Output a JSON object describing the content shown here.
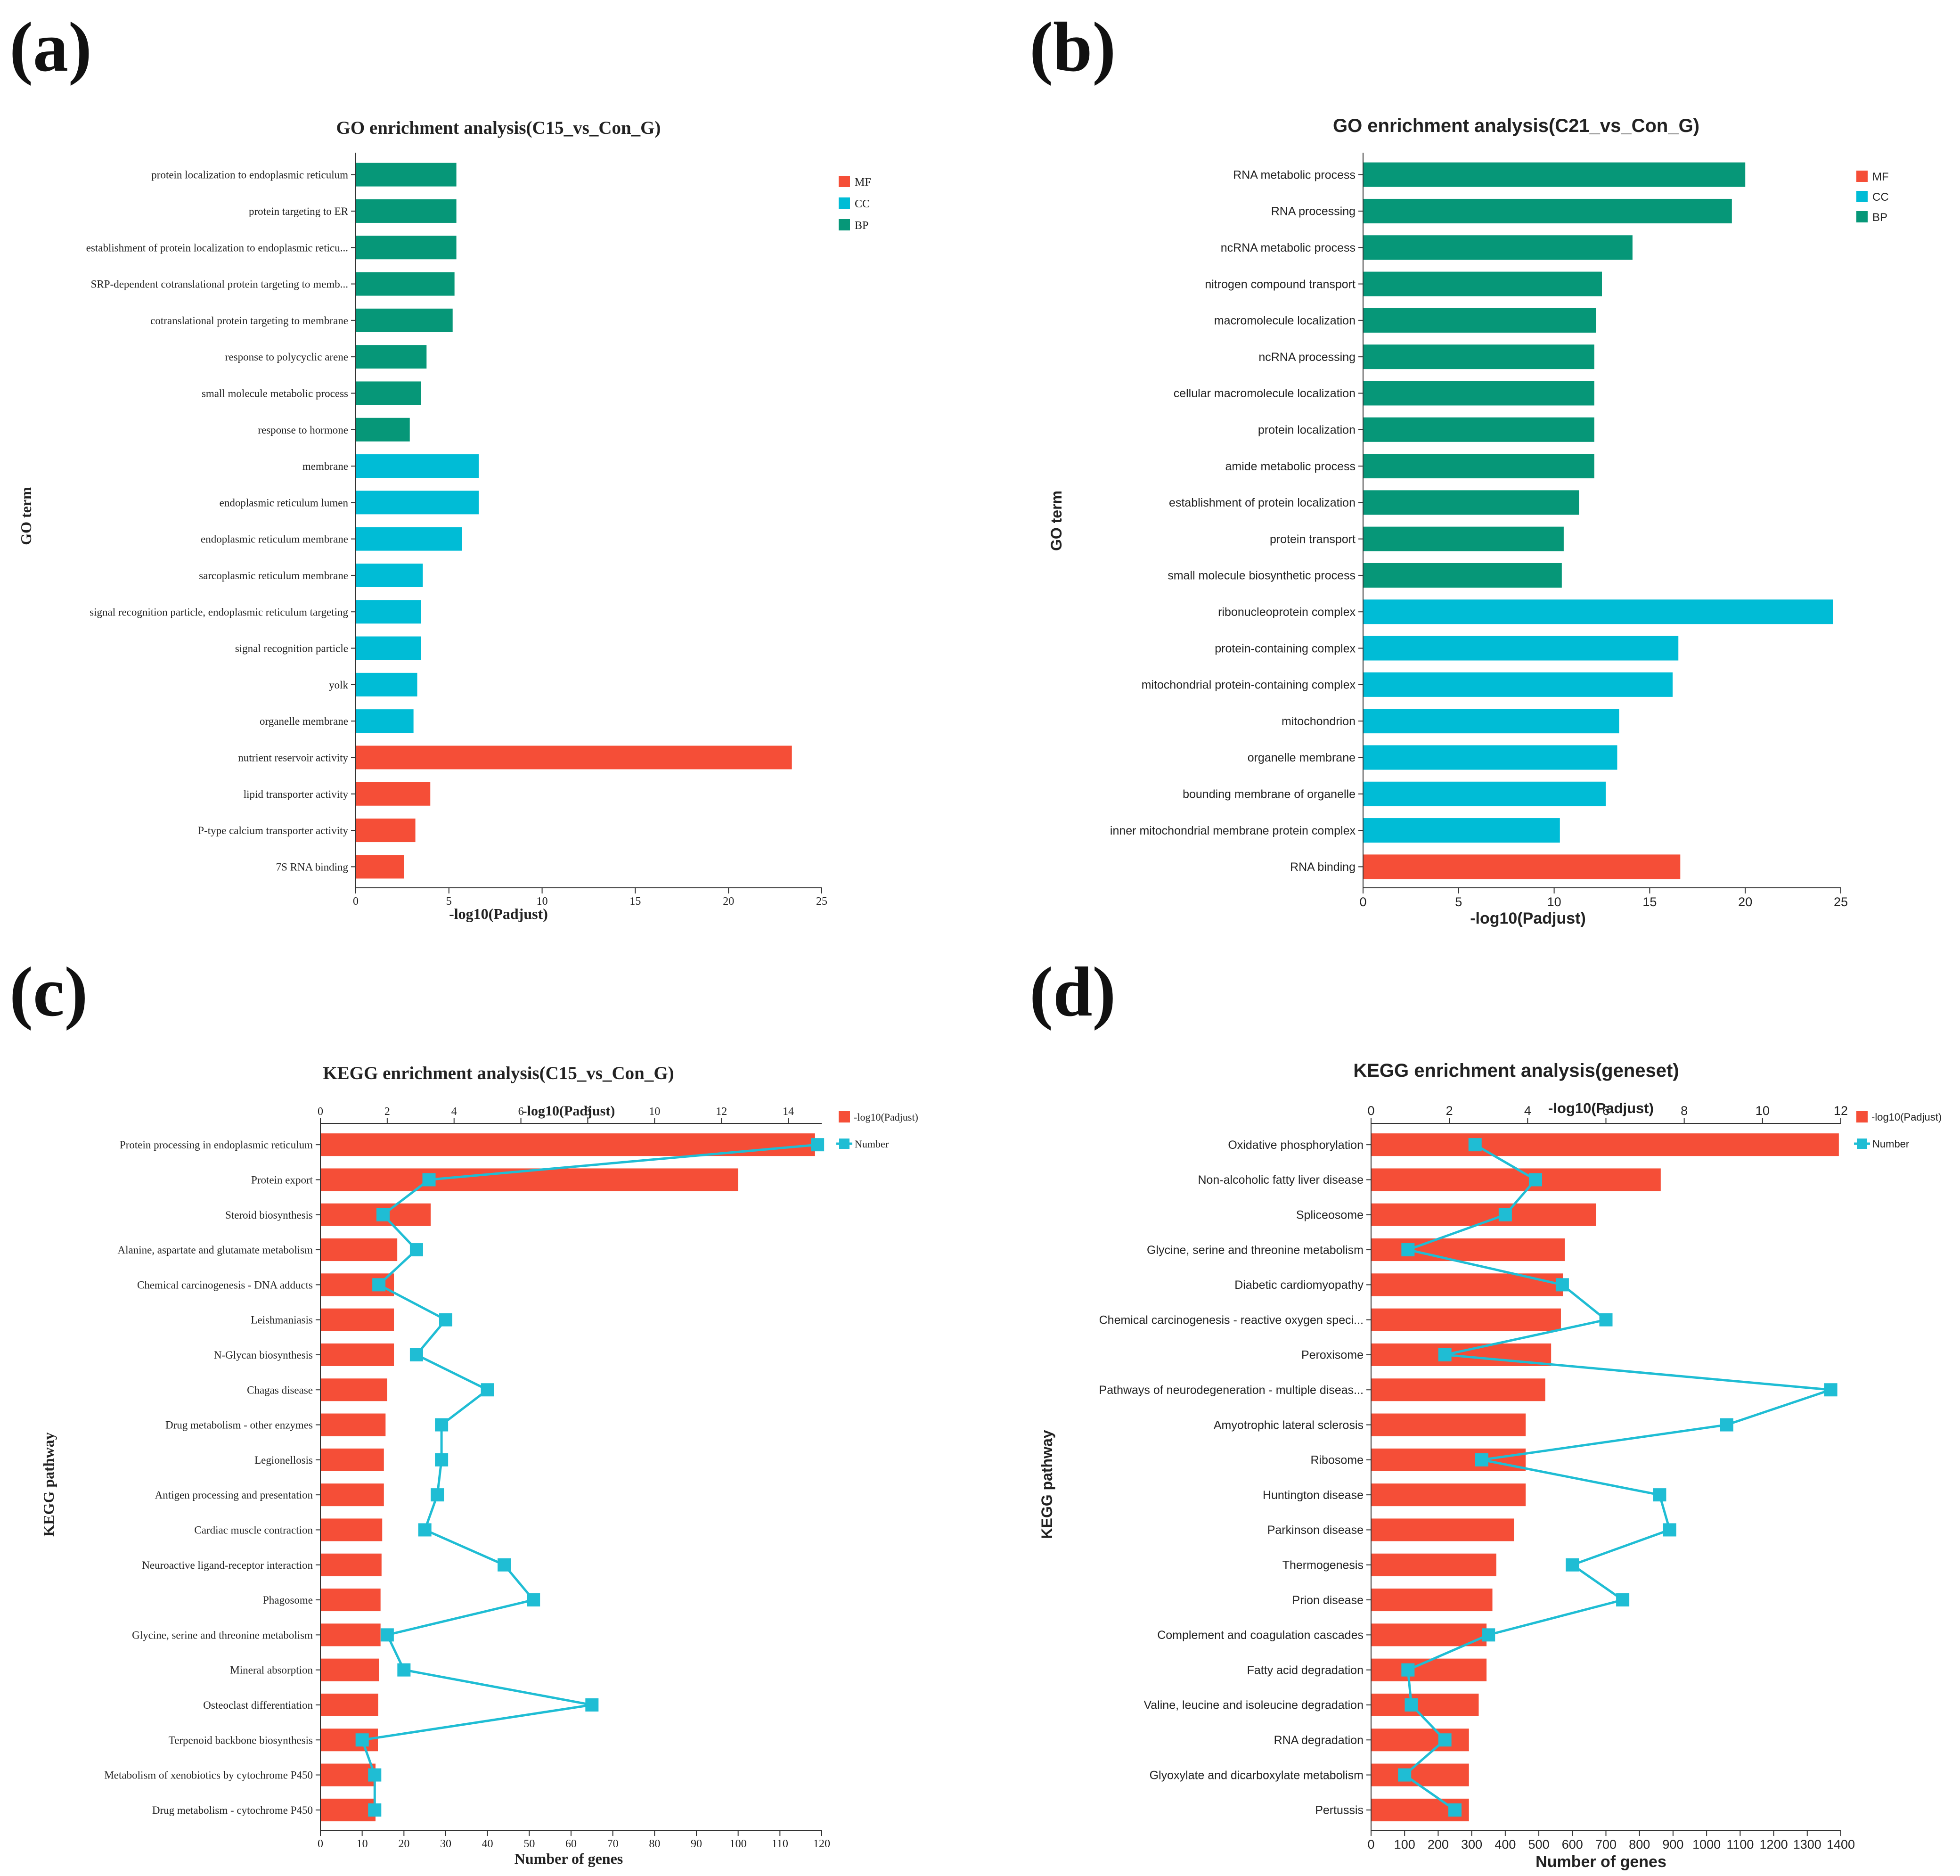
{
  "colors": {
    "MF": "#F54E37",
    "CC": "#00BCD6",
    "BP": "#069778",
    "line": "#1FBDD4",
    "axis": "#333333",
    "text": "#222222"
  },
  "chart_data": [
    {
      "type": "bar",
      "panel_label": "(a)",
      "title": "GO enrichment analysis(C15_vs_Con_G)",
      "xlabel": "-log10(Padjust)",
      "ylabel": "GO term",
      "xlim": [
        0,
        25
      ],
      "xticks": [
        0,
        5,
        10,
        15,
        20,
        25
      ],
      "legend": [
        "MF",
        "CC",
        "BP"
      ],
      "categories": [
        "protein localization to endoplasmic reticulum",
        "protein targeting to ER",
        "establishment of protein localization to endoplasmic reticu...",
        "SRP-dependent cotranslational protein targeting to memb...",
        "cotranslational protein targeting to membrane",
        "response to polycyclic arene",
        "small molecule metabolic process",
        "response to hormone",
        "membrane",
        "endoplasmic reticulum lumen",
        "endoplasmic reticulum membrane",
        "sarcoplasmic reticulum membrane",
        "signal recognition particle, endoplasmic reticulum targeting",
        "signal recognition particle",
        "yolk",
        "organelle membrane",
        "nutrient reservoir activity",
        "lipid transporter activity",
        "P-type calcium transporter activity",
        "7S RNA binding"
      ],
      "values": [
        5.4,
        5.4,
        5.4,
        5.3,
        5.2,
        3.8,
        3.5,
        2.9,
        6.6,
        6.6,
        5.7,
        3.6,
        3.5,
        3.5,
        3.3,
        3.1,
        23.4,
        4.0,
        3.2,
        2.6
      ],
      "groups": [
        "BP",
        "BP",
        "BP",
        "BP",
        "BP",
        "BP",
        "BP",
        "BP",
        "CC",
        "CC",
        "CC",
        "CC",
        "CC",
        "CC",
        "CC",
        "CC",
        "MF",
        "MF",
        "MF",
        "MF"
      ]
    },
    {
      "type": "bar",
      "panel_label": "(b)",
      "title": "GO enrichment analysis(C21_vs_Con_G)",
      "xlabel": "-log10(Padjust)",
      "ylabel": "GO term",
      "xlim": [
        0,
        25
      ],
      "xticks": [
        0,
        5,
        10,
        15,
        20,
        25
      ],
      "legend": [
        "MF",
        "CC",
        "BP"
      ],
      "categories": [
        "RNA metabolic process",
        "RNA processing",
        "ncRNA metabolic process",
        "nitrogen compound transport",
        "macromolecule localization",
        "ncRNA processing",
        "cellular macromolecule localization",
        "protein localization",
        "amide metabolic process",
        "establishment of protein localization",
        "protein transport",
        "small molecule biosynthetic process",
        "ribonucleoprotein complex",
        "protein-containing complex",
        "mitochondrial protein-containing complex",
        "mitochondrion",
        "organelle membrane",
        "bounding membrane of organelle",
        "inner mitochondrial membrane protein complex",
        "RNA binding"
      ],
      "values": [
        20.0,
        19.3,
        14.1,
        12.5,
        12.2,
        12.1,
        12.1,
        12.1,
        12.1,
        11.3,
        10.5,
        10.4,
        24.6,
        16.5,
        16.2,
        13.4,
        13.3,
        12.7,
        10.3,
        16.6
      ],
      "groups": [
        "BP",
        "BP",
        "BP",
        "BP",
        "BP",
        "BP",
        "BP",
        "BP",
        "BP",
        "BP",
        "BP",
        "BP",
        "CC",
        "CC",
        "CC",
        "CC",
        "CC",
        "CC",
        "CC",
        "MF"
      ]
    },
    {
      "type": "bar",
      "panel_label": "(c)",
      "title": "KEGG enrichment analysis(C15_vs_Con_G)",
      "xlabel_top": "-log10(Padjust)",
      "xlabel": "Number of genes",
      "ylabel": "KEGG pathway",
      "xlim_top": [
        0,
        15
      ],
      "xticks_top": [
        0,
        2,
        4,
        6,
        8,
        10,
        12,
        14
      ],
      "xlim": [
        0,
        120
      ],
      "xticks": [
        0,
        10,
        20,
        30,
        40,
        50,
        60,
        70,
        80,
        90,
        100,
        110,
        120
      ],
      "legend": [
        "-log10(Padjust)",
        "Number"
      ],
      "categories": [
        "Protein processing in endoplasmic reticulum",
        "Protein export",
        "Steroid biosynthesis",
        "Alanine, aspartate and glutamate metabolism",
        "Chemical carcinogenesis - DNA adducts",
        "Leishmaniasis",
        "N-Glycan biosynthesis",
        "Chagas disease",
        "Drug metabolism - other enzymes",
        "Legionellosis",
        "Antigen processing and presentation",
        "Cardiac muscle contraction",
        "Neuroactive ligand-receptor interaction",
        "Phagosome",
        "Glycine, serine and threonine metabolism",
        "Mineral absorption",
        "Osteoclast differentiation",
        "Terpenoid backbone biosynthesis",
        "Metabolism of xenobiotics by cytochrome P450",
        "Drug metabolism - cytochrome P450"
      ],
      "series": [
        {
          "name": "-log10(Padjust)",
          "type": "bar",
          "values": [
            14.8,
            12.5,
            3.3,
            2.3,
            2.2,
            2.2,
            2.2,
            2.0,
            1.95,
            1.9,
            1.9,
            1.85,
            1.83,
            1.8,
            1.8,
            1.75,
            1.73,
            1.72,
            1.65,
            1.65
          ]
        },
        {
          "name": "Number",
          "type": "line",
          "values": [
            119,
            26,
            15,
            23,
            14,
            30,
            23,
            40,
            29,
            29,
            28,
            25,
            44,
            51,
            16,
            20,
            65,
            10,
            13,
            13
          ]
        }
      ]
    },
    {
      "type": "bar",
      "panel_label": "(d)",
      "title": "KEGG enrichment analysis(geneset)",
      "xlabel_top": "-log10(Padjust)",
      "xlabel": "Number of genes",
      "ylabel": "KEGG pathway",
      "xlim_top": [
        0,
        12
      ],
      "xticks_top": [
        0,
        2,
        4,
        6,
        8,
        10,
        12
      ],
      "xlim": [
        0,
        1400
      ],
      "xticks": [
        0,
        100,
        200,
        300,
        400,
        500,
        600,
        700,
        800,
        900,
        1000,
        1100,
        1200,
        1300,
        1400
      ],
      "legend": [
        "-log10(Padjust)",
        "Number"
      ],
      "categories": [
        "Oxidative phosphorylation",
        "Non-alcoholic fatty liver disease",
        "Spliceosome",
        "Glycine, serine and threonine metabolism",
        "Diabetic cardiomyopathy",
        "Chemical carcinogenesis - reactive oxygen speci...",
        "Peroxisome",
        "Pathways of neurodegeneration - multiple diseas...",
        "Amyotrophic lateral sclerosis",
        "Ribosome",
        "Huntington disease",
        "Parkinson disease",
        "Thermogenesis",
        "Prion disease",
        "Complement and coagulation cascades",
        "Fatty acid degradation",
        "Valine, leucine and isoleucine degradation",
        "RNA degradation",
        "Glyoxylate and dicarboxylate metabolism",
        "Pertussis"
      ],
      "series": [
        {
          "name": "-log10(Padjust)",
          "type": "bar",
          "values": [
            11.95,
            7.4,
            5.75,
            4.95,
            4.9,
            4.85,
            4.6,
            4.45,
            3.95,
            3.95,
            3.95,
            3.65,
            3.2,
            3.1,
            2.95,
            2.95,
            2.75,
            2.5,
            2.5,
            2.5
          ]
        },
        {
          "name": "Number",
          "type": "line",
          "values": [
            310,
            490,
            400,
            110,
            570,
            700,
            220,
            1370,
            1060,
            330,
            860,
            890,
            600,
            750,
            350,
            110,
            120,
            220,
            100,
            250
          ]
        }
      ]
    }
  ]
}
